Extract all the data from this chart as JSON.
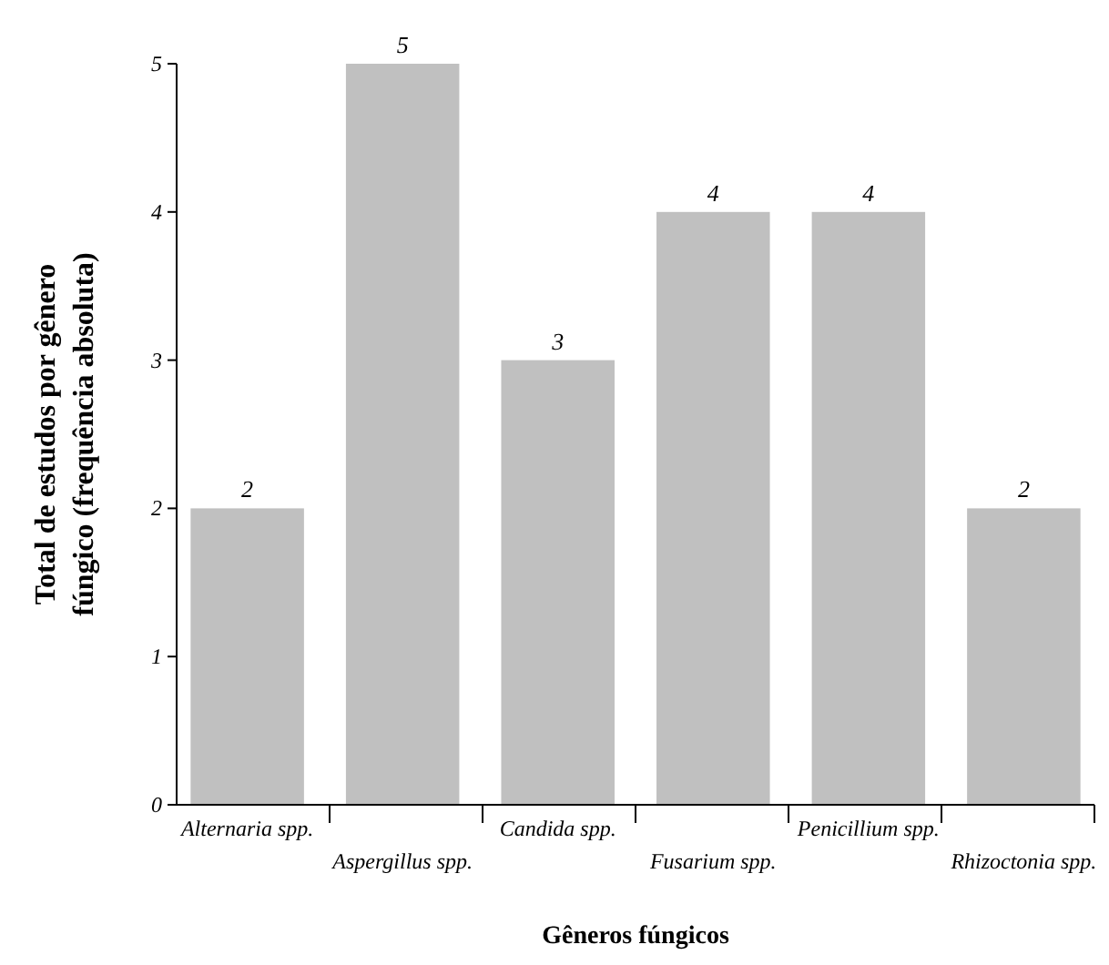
{
  "chart_data": {
    "type": "bar",
    "xlabel": "Gêneros fúngicos",
    "ylabel": "Total de estudos por gênero fúngico (frequência absoluta)",
    "categories": [
      "Alternaria spp.",
      "Aspergillus spp.",
      "Candida spp.",
      "Fusarium spp.",
      "Penicillium spp.",
      "Rhizoctonia spp."
    ],
    "values": [
      2,
      5,
      3,
      4,
      4,
      2
    ],
    "color": "#c0c0c0",
    "ylim": [
      0,
      5
    ],
    "yticks": [
      0,
      1,
      2,
      3,
      4,
      5
    ],
    "grid": false,
    "data_labels": true
  }
}
